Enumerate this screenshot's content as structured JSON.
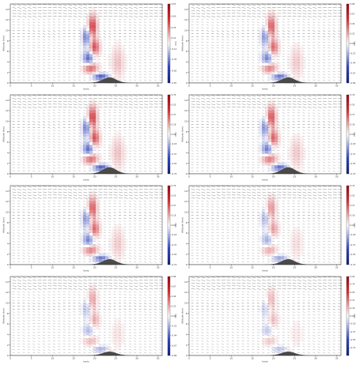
{
  "chart_data": [
    {
      "type": "heatmap",
      "panel": "a",
      "xlabel": "km/s",
      "ylabel": "Altitude (km)",
      "cbar_label": "m/s",
      "xticks": [
        "0",
        "5",
        "10",
        "15",
        "20",
        "25",
        "30",
        "35"
      ],
      "yticks": [
        "0",
        "2",
        "4",
        "6",
        "8",
        "10",
        "12",
        "14"
      ],
      "xlim": [
        0,
        36
      ],
      "ylim": [
        0,
        15
      ],
      "cbar_ticks": [
        "0.87",
        "0.60",
        "0.35",
        "0.12",
        "-0.12",
        "-0.35",
        "-0.60",
        "-0.87"
      ],
      "cbar_range": [
        -0.87,
        0.87
      ],
      "mountain": {
        "peak_x": 23.5,
        "peak_height": 1.0
      },
      "strength": 1.0
    },
    {
      "type": "heatmap",
      "panel": "b",
      "xlabel": "km/s",
      "ylabel": "Altitude (km)",
      "cbar_label": "m/s",
      "xticks": [
        "0",
        "5",
        "10",
        "15",
        "20",
        "25",
        "30",
        "35"
      ],
      "yticks": [
        "0",
        "2",
        "4",
        "6",
        "8",
        "10",
        "12",
        "14"
      ],
      "xlim": [
        0,
        36
      ],
      "ylim": [
        0,
        15
      ],
      "cbar_ticks": [
        "0.89",
        "0.67",
        "0.44",
        "0.22",
        "0.00",
        "-0.22",
        "-0.44",
        "-0.67",
        "-0.89"
      ],
      "cbar_range": [
        -0.89,
        0.89
      ],
      "mountain": {
        "peak_x": 23.5,
        "peak_height": 1.0
      },
      "strength": 0.85
    },
    {
      "type": "heatmap",
      "panel": "c",
      "xlabel": "km/s",
      "ylabel": "Altitude (km)",
      "cbar_label": "m/s",
      "xticks": [
        "0",
        "5",
        "10",
        "15",
        "20",
        "25",
        "30",
        "35"
      ],
      "yticks": [
        "0",
        "2",
        "4",
        "6",
        "8",
        "10",
        "12",
        "14"
      ],
      "xlim": [
        0,
        36
      ],
      "ylim": [
        0,
        15
      ],
      "cbar_ticks": [
        "0.74",
        "0.55",
        "0.37",
        "0.18",
        "0.00",
        "-0.18",
        "-0.37",
        "-0.55",
        "-0.74"
      ],
      "cbar_range": [
        -0.74,
        0.74
      ],
      "mountain": {
        "peak_x": 23.5,
        "peak_height": 1.2
      },
      "strength": 1.0
    },
    {
      "type": "heatmap",
      "panel": "d",
      "xlabel": "km/s",
      "ylabel": "Altitude (km)",
      "cbar_label": "m/s",
      "xticks": [
        "0",
        "5",
        "10",
        "15",
        "20",
        "25",
        "30",
        "35"
      ],
      "yticks": [
        "0",
        "2",
        "4",
        "6",
        "8",
        "10",
        "12",
        "14"
      ],
      "xlim": [
        0,
        36
      ],
      "ylim": [
        0,
        15
      ],
      "cbar_ticks": [
        "0.74",
        "0.55",
        "0.37",
        "0.18",
        "0.00",
        "-0.18",
        "-0.37",
        "-0.55",
        "-0.74"
      ],
      "cbar_range": [
        -0.74,
        0.74
      ],
      "mountain": {
        "peak_x": 23.5,
        "peak_height": 1.2
      },
      "strength": 0.9
    },
    {
      "type": "heatmap",
      "panel": "e",
      "xlabel": "km/s",
      "ylabel": "Altitude (km)",
      "cbar_label": "m/s",
      "xticks": [
        "0",
        "5",
        "10",
        "15",
        "20",
        "25",
        "30",
        "35"
      ],
      "yticks": [
        "0",
        "2",
        "4",
        "6",
        "8",
        "10",
        "12",
        "14"
      ],
      "xlim": [
        0,
        36
      ],
      "ylim": [
        0,
        15
      ],
      "cbar_ticks": [
        "0.74",
        "0.55",
        "0.37",
        "0.18",
        "0.00",
        "-0.18",
        "-0.37",
        "-0.55",
        "-0.74"
      ],
      "cbar_range": [
        -0.74,
        0.74
      ],
      "mountain": {
        "peak_x": 23.5,
        "peak_height": 1.0
      },
      "strength": 0.85
    },
    {
      "type": "heatmap",
      "panel": "f",
      "xlabel": "km/s",
      "ylabel": "Altitude (km)",
      "cbar_label": "m/s",
      "xticks": [
        "0",
        "5",
        "10",
        "15",
        "20",
        "25",
        "30",
        "35"
      ],
      "yticks": [
        "0",
        "2",
        "4",
        "6",
        "8",
        "10",
        "12",
        "14"
      ],
      "xlim": [
        0,
        36
      ],
      "ylim": [
        0,
        15
      ],
      "cbar_ticks": [
        "0.74",
        "0.55",
        "0.37",
        "0.18",
        "0.00",
        "-0.18",
        "-0.37",
        "-0.55",
        "-0.74"
      ],
      "cbar_range": [
        -0.74,
        0.74
      ],
      "mountain": {
        "peak_x": 23.5,
        "peak_height": 1.0
      },
      "strength": 0.55
    },
    {
      "type": "heatmap",
      "panel": "g",
      "xlabel": "km/s",
      "ylabel": "Altitude (km)",
      "cbar_label": "m/s",
      "xticks": [
        "0",
        "5",
        "10",
        "15",
        "20",
        "25",
        "30",
        "35"
      ],
      "yticks": [
        "0",
        "2",
        "4",
        "6",
        "8",
        "10",
        "12",
        "14"
      ],
      "xlim": [
        0,
        36
      ],
      "ylim": [
        0,
        15
      ],
      "cbar_ticks": [
        "0.89",
        "0.67",
        "0.44",
        "0.22",
        "0.00",
        "-0.22",
        "-0.44",
        "-0.67",
        "-0.89"
      ],
      "cbar_range": [
        -0.89,
        0.89
      ],
      "mountain": {
        "peak_x": 23.5,
        "peak_height": 0.7
      },
      "strength": 0.45
    },
    {
      "type": "heatmap",
      "panel": "h",
      "xlabel": "km/s",
      "ylabel": "Altitude (km)",
      "cbar_label": "m/s",
      "xticks": [
        "0",
        "5",
        "10",
        "15",
        "20",
        "25",
        "30",
        "35"
      ],
      "yticks": [
        "0",
        "2",
        "4",
        "6",
        "8",
        "10",
        "12",
        "14"
      ],
      "xlim": [
        0,
        36
      ],
      "ylim": [
        0,
        15
      ],
      "cbar_ticks": [
        "0.92",
        "0.74",
        "0.55",
        "0.37",
        "0.18",
        "0.00",
        "-0.18",
        "-0.37",
        "-0.55",
        "-0.74"
      ],
      "cbar_range": [
        -0.92,
        0.92
      ],
      "mountain": {
        "peak_x": 23.5,
        "peak_height": 0.7
      },
      "strength": 0.35
    }
  ]
}
